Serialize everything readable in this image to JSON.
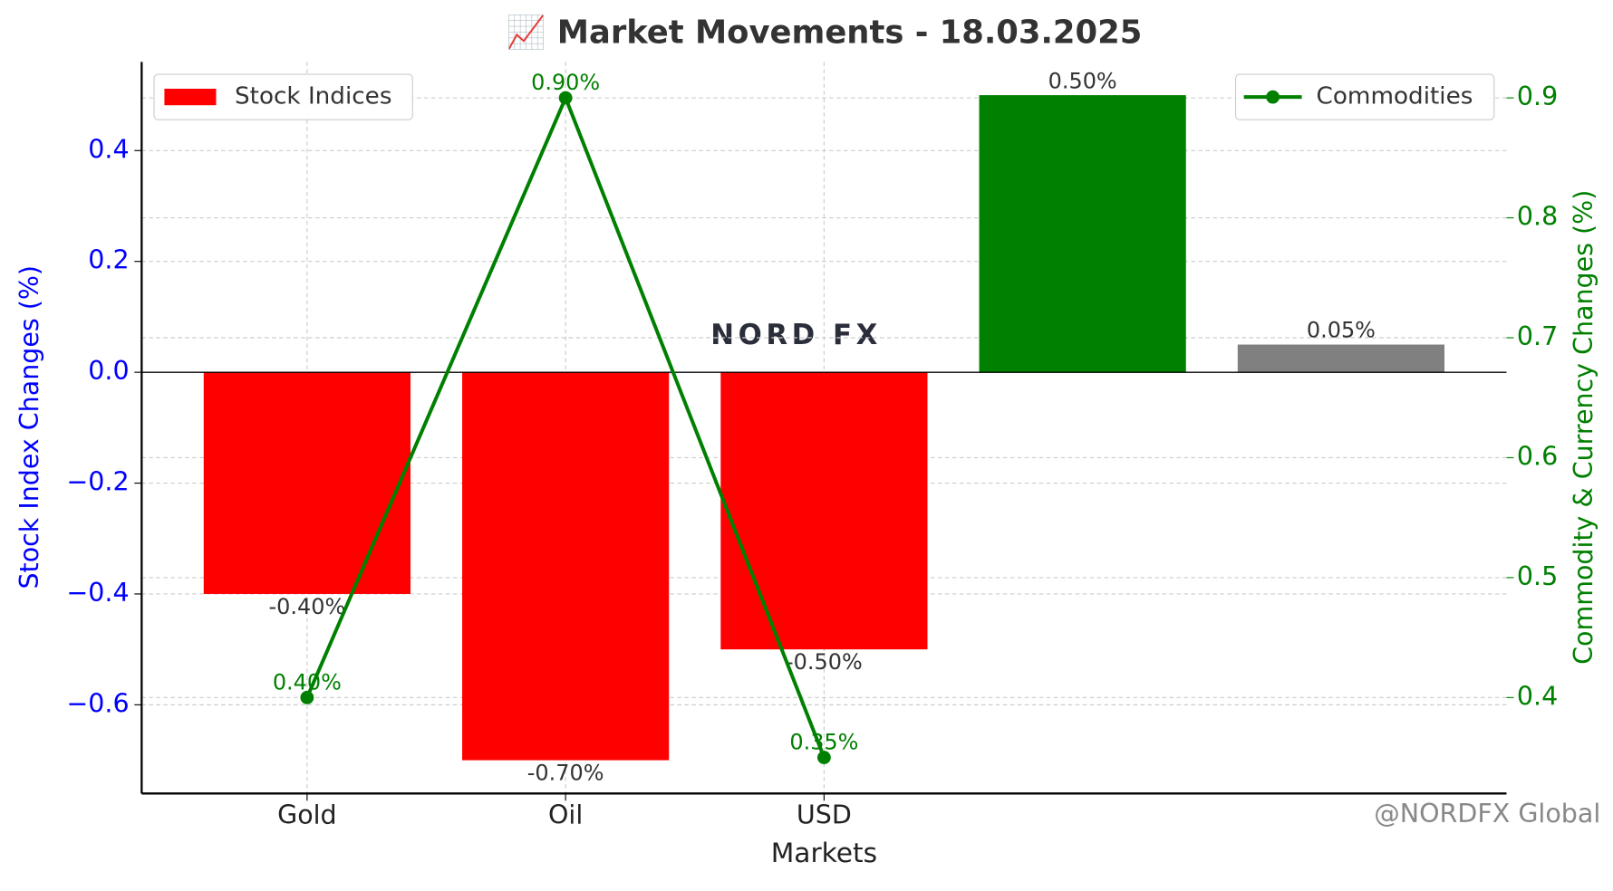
{
  "chart_data": {
    "type": "bar",
    "title": "📈 Market Movements - 18.03.2025",
    "x_label": "Markets",
    "y_label": "Stock Index Changes (%)",
    "y2_label": "Commodity & Currency Changes (%)",
    "categories": [
      "Gold",
      "Oil",
      "USD",
      null,
      null
    ],
    "series": [
      {
        "name": "Stock Indices",
        "type": "bar",
        "axis": "y",
        "legend": "upper left",
        "colors": [
          "#ff0000",
          "#ff0000",
          "#ff0000",
          "#008000",
          "#808080"
        ],
        "values": [
          -0.4,
          -0.7,
          -0.5,
          0.5,
          0.05
        ],
        "value_labels": [
          "-0.40%",
          "-0.70%",
          "-0.50%",
          "0.50%",
          "0.05%"
        ]
      },
      {
        "name": "Commodities",
        "type": "line",
        "axis": "y2",
        "legend": "upper right",
        "color": "#008000",
        "values": [
          0.4,
          0.9,
          0.35,
          null,
          null
        ],
        "value_labels": [
          "0.40%",
          "0.90%",
          "0.35%",
          null,
          null
        ]
      }
    ],
    "ylim": [
      -0.76,
      0.56
    ],
    "yticks": [
      {
        "value": -0.6,
        "label": "−0.6"
      },
      {
        "value": -0.4,
        "label": "−0.4"
      },
      {
        "value": -0.2,
        "label": "−0.2"
      },
      {
        "value": 0,
        "label": "0.0"
      },
      0.2,
      0.4
    ],
    "y2lim": [
      0.32,
      0.93
    ],
    "y2ticks": [
      0.4,
      0.5,
      0.6,
      0.7,
      0.8,
      0.9
    ],
    "grid": true,
    "annotations": [
      "NORD FX",
      "@NORDFX Global"
    ]
  }
}
